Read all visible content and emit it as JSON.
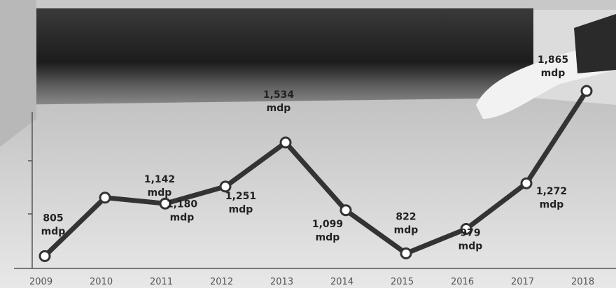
{
  "chart_data": {
    "type": "line",
    "title": "",
    "xlabel": "",
    "ylabel": "",
    "ylim": [
      600,
      2000
    ],
    "grid": false,
    "x": [
      "2009",
      "2010",
      "2011",
      "2012",
      "2013",
      "2014",
      "2015",
      "2016",
      "2017",
      "2018"
    ],
    "series": [
      {
        "values": [
          805,
          1180,
          1142,
          1251,
          1534,
          1099,
          822,
          979,
          1272,
          1865
        ]
      }
    ],
    "data_labels": [
      {
        "value": "805",
        "unit": "mdp"
      },
      {
        "value": "1,180",
        "unit": "mdp"
      },
      {
        "value": "1,142",
        "unit": "mdp"
      },
      {
        "value": "1,251",
        "unit": "mdp"
      },
      {
        "value": "1,534",
        "unit": "mdp"
      },
      {
        "value": "1,099",
        "unit": "mdp"
      },
      {
        "value": "822",
        "unit": "mdp"
      },
      {
        "value": "979",
        "unit": "mdp"
      },
      {
        "value": "1,272",
        "unit": "mdp"
      },
      {
        "value": "1,865",
        "unit": "mdp"
      }
    ],
    "colors": {
      "line": "#333333",
      "marker_fill": "#ffffff",
      "axis": "#555555"
    }
  }
}
